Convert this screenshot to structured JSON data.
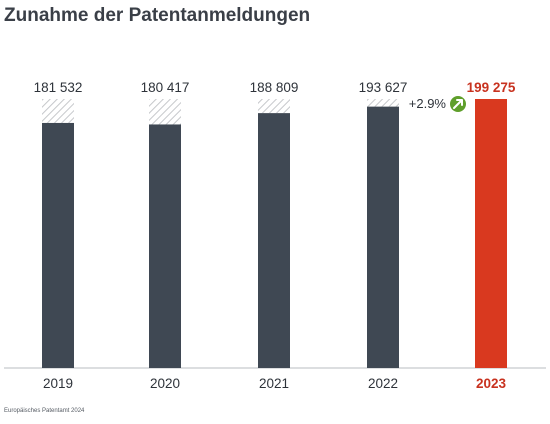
{
  "title": "Zunahme der Patentanmeldungen",
  "source": "Europäisches Patentamt 2024",
  "colors": {
    "bar": "#3f4853",
    "highlight": "#d9391f",
    "badge": "#5f9f2b",
    "hatch": "#c6c8cb"
  },
  "icons": {
    "growth_badge": "arrow-up-right-icon"
  },
  "chart_data": {
    "type": "bar",
    "title": "Zunahme der Patentanmeldungen",
    "categories": [
      "2019",
      "2020",
      "2021",
      "2022",
      "2023"
    ],
    "values": [
      181532,
      180417,
      188809,
      193627,
      199275
    ],
    "value_labels": [
      "181 532",
      "180 417",
      "188 809",
      "193 627",
      "199 275"
    ],
    "hatched_tops": [
      181532,
      180417,
      188809,
      193627,
      null
    ],
    "highlight_index": 4,
    "annotation": {
      "text": "+2.9%",
      "index": 4
    },
    "ylim": [
      0,
      199275
    ],
    "grid": false,
    "legend": "none"
  }
}
